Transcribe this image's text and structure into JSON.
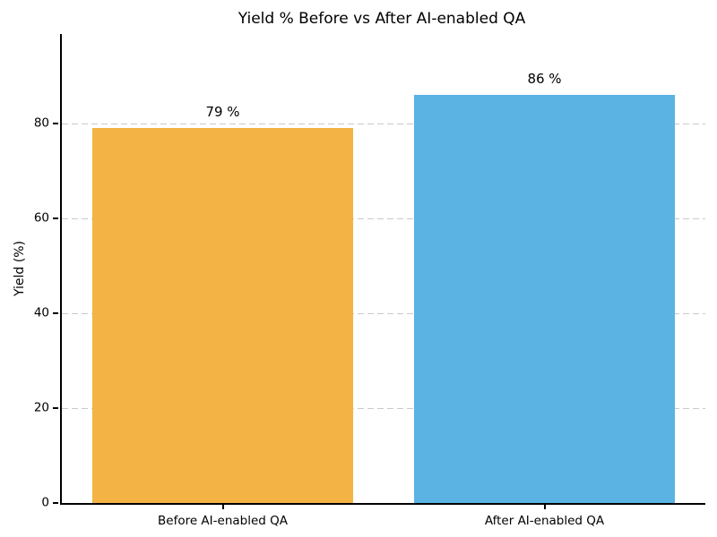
{
  "chart_data": {
    "type": "bar",
    "title": "Yield % Before vs After AI-enabled QA",
    "xlabel": "",
    "ylabel": "Yield (%)",
    "categories": [
      "Before AI-enabled QA",
      "After AI-enabled QA"
    ],
    "values": [
      79,
      86
    ],
    "value_labels": [
      "79 %",
      "86 %"
    ],
    "bar_colors": [
      "#F3B445",
      "#5AB3E2"
    ],
    "ylim": [
      0,
      98.9
    ],
    "yticks": [
      0,
      20,
      40,
      60,
      80
    ],
    "ytick_labels": [
      "0",
      "20",
      "40",
      "60",
      "80"
    ],
    "bar_width_fraction": 0.405,
    "grid": "horizontal dashed, behind bars",
    "gridline_color": "#c9c9c9",
    "axis_color": "#000000",
    "text_color": "#000000",
    "background_color": "#ffffff",
    "legend": "none"
  }
}
